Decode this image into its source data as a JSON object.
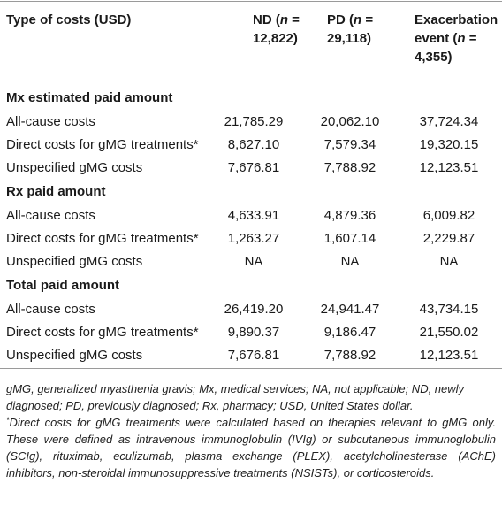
{
  "header": {
    "col0": "Type of costs (USD)",
    "col1_line1": "ND (",
    "col1_n": "n",
    "col1_eq": " =",
    "col1_line2": "12,822)",
    "col2_line1": "PD (",
    "col2_n": "n",
    "col2_eq": " =",
    "col2_line2": "29,118)",
    "col3_line1": "Exacerbation",
    "col3_line2a": "event (",
    "col3_n": "n",
    "col3_eq": " =",
    "col3_line3": "4,355)"
  },
  "sections": [
    {
      "title": "Mx estimated paid amount",
      "rows": [
        {
          "label": "All-cause costs",
          "nd": "21,785.29",
          "pd": "20,062.10",
          "ex": "37,724.34"
        },
        {
          "label": "Direct costs for gMG treatments*",
          "nd": "8,627.10",
          "pd": "7,579.34",
          "ex": "19,320.15"
        },
        {
          "label": "Unspecified gMG costs",
          "nd": "7,676.81",
          "pd": "7,788.92",
          "ex": "12,123.51"
        }
      ]
    },
    {
      "title": "Rx paid amount",
      "rows": [
        {
          "label": "All-cause costs",
          "nd": "4,633.91",
          "pd": "4,879.36",
          "ex": "6,009.82"
        },
        {
          "label": "Direct costs for gMG treatments*",
          "nd": "1,263.27",
          "pd": "1,607.14",
          "ex": "2,229.87"
        },
        {
          "label": "Unspecified gMG costs",
          "nd": "NA",
          "pd": "NA",
          "ex": "NA"
        }
      ]
    },
    {
      "title": "Total paid amount",
      "rows": [
        {
          "label": "All-cause costs",
          "nd": "26,419.20",
          "pd": "24,941.47",
          "ex": "43,734.15"
        },
        {
          "label": "Direct costs for gMG treatments*",
          "nd": "9,890.37",
          "pd": "9,186.47",
          "ex": "21,550.02"
        },
        {
          "label": "Unspecified gMG costs",
          "nd": "7,676.81",
          "pd": "7,788.92",
          "ex": "12,123.51"
        }
      ]
    }
  ],
  "footnotes": {
    "abbreviations": "gMG, generalized myasthenia gravis; Mx, medical services; NA, not applicable; ND, newly diagnosed; PD, previously diagnosed; Rx, pharmacy; USD, United States dollar.",
    "asterisk_mark": "*",
    "asterisk_note": "Direct costs for gMG treatments were calculated based on therapies relevant to gMG only. These were defined as intravenous immunoglobulin (IVIg) or subcutaneous immunoglobulin (SCIg), rituximab, eculizumab, plasma exchange (PLEX), acetylcholinesterase (AChE) inhibitors, non-steroidal immunosuppressive treatments (NSISTs), or corticosteroids."
  }
}
